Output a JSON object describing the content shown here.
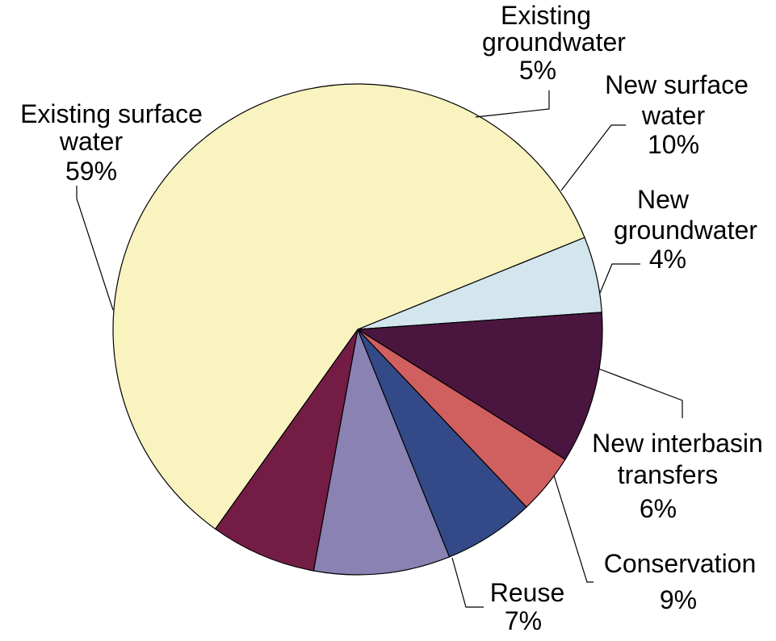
{
  "chart_data": {
    "type": "pie",
    "title": "",
    "slices": [
      {
        "name_lines": [
          "Existing",
          "groundwater"
        ],
        "pct_label": "5%",
        "value": 5,
        "color": "#d3e6ee"
      },
      {
        "name_lines": [
          "New surface",
          "water"
        ],
        "pct_label": "10%",
        "value": 10,
        "color": "#4a1640"
      },
      {
        "name_lines": [
          "New",
          "groundwater"
        ],
        "pct_label": "4%",
        "value": 4,
        "color": "#d05f5f"
      },
      {
        "name_lines": [
          "New interbasin",
          "transfers"
        ],
        "pct_label": "6%",
        "value": 6,
        "color": "#344a88"
      },
      {
        "name_lines": [
          "Conservation"
        ],
        "pct_label": "9%",
        "value": 9,
        "color": "#8a82b2"
      },
      {
        "name_lines": [
          "Reuse"
        ],
        "pct_label": "7%",
        "value": 7,
        "color": "#741d44"
      },
      {
        "name_lines": [
          "Existing surface",
          "water"
        ],
        "pct_label": "59%",
        "value": 59,
        "color": "#f8f3bf"
      }
    ]
  }
}
